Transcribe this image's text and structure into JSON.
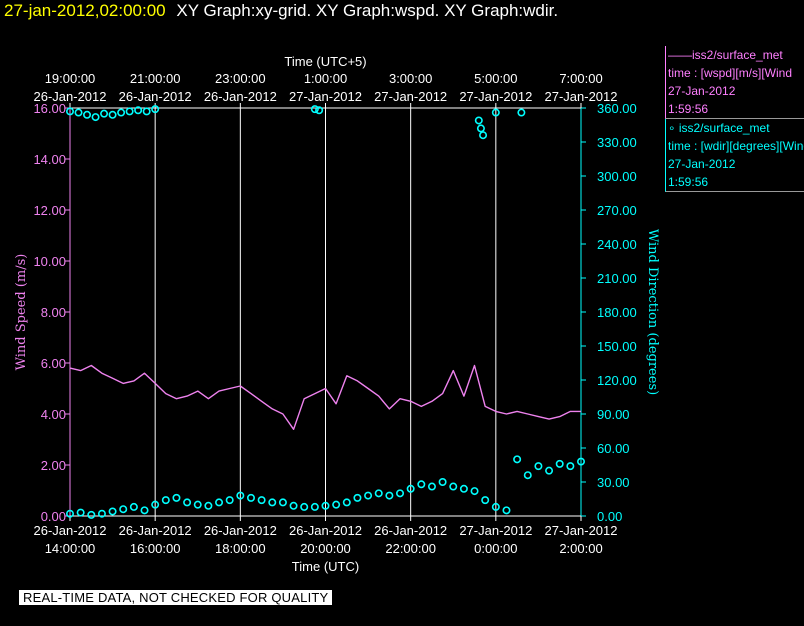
{
  "header": {
    "datetime": "27-jan-2012,02:00:00",
    "title": "XY Graph:xy-grid.  XY Graph:wspd.  XY Graph:wdir."
  },
  "colors": {
    "wspd": "#ee82ee",
    "wdir": "#00ffff",
    "grid": "#ffffff",
    "axis_text": "#ffffff"
  },
  "legend": {
    "wspd_name": "——iss2/surface_met",
    "wspd_var": "time : [wspd][m/s][Wind",
    "wspd_date": "27-Jan-2012",
    "wspd_time": "1:59:56",
    "wdir_name": "∘ iss2/surface_met",
    "wdir_var": "time : [wdir][degrees][Wind",
    "wdir_date": "27-Jan-2012",
    "wdir_time": "1:59:56"
  },
  "footer": "REAL-TIME DATA, NOT CHECKED FOR QUALITY",
  "chart_data": {
    "type": "line",
    "top_axis_label": "Time (UTC+5)",
    "xlabel": "Time (UTC)",
    "ylabel_left": "Wind Speed (m/s)",
    "ylabel_right": "Wind Direction (degrees)",
    "x_range_hours_utc": [
      14,
      26
    ],
    "top_ticks": [
      {
        "time": "19:00:00",
        "date": "26-Jan-2012"
      },
      {
        "time": "21:00:00",
        "date": "26-Jan-2012"
      },
      {
        "time": "23:00:00",
        "date": "26-Jan-2012"
      },
      {
        "time": "1:00:00",
        "date": "27-Jan-2012"
      },
      {
        "time": "3:00:00",
        "date": "27-Jan-2012"
      },
      {
        "time": "5:00:00",
        "date": "27-Jan-2012"
      },
      {
        "time": "7:00:00",
        "date": "27-Jan-2012"
      }
    ],
    "bottom_ticks": [
      {
        "time": "14:00:00",
        "date": "26-Jan-2012"
      },
      {
        "time": "16:00:00",
        "date": "26-Jan-2012"
      },
      {
        "time": "18:00:00",
        "date": "26-Jan-2012"
      },
      {
        "time": "20:00:00",
        "date": "26-Jan-2012"
      },
      {
        "time": "22:00:00",
        "date": "26-Jan-2012"
      },
      {
        "time": "0:00:00",
        "date": "27-Jan-2012"
      },
      {
        "time": "2:00:00",
        "date": "27-Jan-2012"
      }
    ],
    "y_left_ticks": [
      "0.00",
      "2.00",
      "4.00",
      "6.00",
      "8.00",
      "10.00",
      "12.00",
      "14.00",
      "16.00"
    ],
    "y_left_range": [
      0,
      16
    ],
    "y_right_ticks": [
      "0.00",
      "30.00",
      "60.00",
      "90.00",
      "120.00",
      "150.00",
      "180.00",
      "210.00",
      "240.00",
      "270.00",
      "300.00",
      "330.00",
      "360.00"
    ],
    "y_right_range": [
      0,
      360
    ],
    "series": [
      {
        "name": "wspd",
        "style": "line",
        "x": [
          14.0,
          14.25,
          14.5,
          14.75,
          15.0,
          15.25,
          15.5,
          15.75,
          16.0,
          16.25,
          16.5,
          16.75,
          17.0,
          17.25,
          17.5,
          17.75,
          18.0,
          18.25,
          18.5,
          18.75,
          19.0,
          19.25,
          19.5,
          19.75,
          20.0,
          20.25,
          20.5,
          20.75,
          21.0,
          21.25,
          21.5,
          21.75,
          22.0,
          22.25,
          22.5,
          22.75,
          23.0,
          23.25,
          23.5,
          23.75,
          24.0,
          24.25,
          24.5,
          24.75,
          25.0,
          25.25,
          25.5,
          25.75,
          26.0
        ],
        "y": [
          5.8,
          5.7,
          5.9,
          5.6,
          5.4,
          5.2,
          5.3,
          5.6,
          5.2,
          4.8,
          4.6,
          4.7,
          4.9,
          4.6,
          4.9,
          5.0,
          5.1,
          4.8,
          4.5,
          4.2,
          4.0,
          3.4,
          4.6,
          4.8,
          5.0,
          4.4,
          5.5,
          5.3,
          5.0,
          4.7,
          4.2,
          4.6,
          4.5,
          4.3,
          4.5,
          4.8,
          5.7,
          4.7,
          5.9,
          4.3,
          4.1,
          4.0,
          4.1,
          4.0,
          3.9,
          3.8,
          3.9,
          4.1,
          4.1
        ]
      },
      {
        "name": "wdir",
        "style": "marker",
        "x": [
          14.0,
          14.25,
          14.5,
          14.75,
          15.0,
          15.25,
          15.5,
          15.75,
          16.0,
          16.25,
          16.5,
          16.75,
          17.0,
          17.25,
          17.5,
          17.75,
          18.0,
          18.25,
          18.5,
          18.75,
          19.0,
          19.25,
          19.5,
          19.75,
          20.0,
          20.25,
          20.5,
          20.75,
          21.0,
          21.25,
          21.5,
          21.75,
          22.0,
          22.25,
          22.5,
          22.75,
          23.0,
          23.25,
          23.5,
          23.75,
          24.0,
          24.25,
          24.5,
          24.75,
          25.0,
          25.25,
          25.5,
          25.75,
          26.0
        ],
        "y": [
          2,
          3,
          1,
          2,
          4,
          6,
          8,
          5,
          10,
          14,
          16,
          12,
          10,
          9,
          12,
          14,
          18,
          16,
          14,
          12,
          12,
          9,
          8,
          8,
          9,
          10,
          12,
          16,
          18,
          20,
          18,
          20,
          24,
          28,
          26,
          30,
          26,
          24,
          22,
          14,
          8,
          5,
          50,
          36,
          44,
          40,
          46,
          44,
          48
        ]
      },
      {
        "name": "wdir_wrap",
        "style": "marker",
        "x": [
          14.0,
          14.2,
          14.4,
          14.6,
          14.8,
          15.0,
          15.2,
          15.4,
          15.6,
          15.8,
          16.0,
          19.75,
          19.85,
          23.6,
          23.65,
          23.7,
          24.0,
          24.6
        ],
        "y": [
          357,
          356,
          354,
          352,
          355,
          354,
          356,
          357,
          358,
          357,
          359,
          359,
          358,
          349,
          342,
          336,
          356,
          356
        ]
      }
    ]
  }
}
